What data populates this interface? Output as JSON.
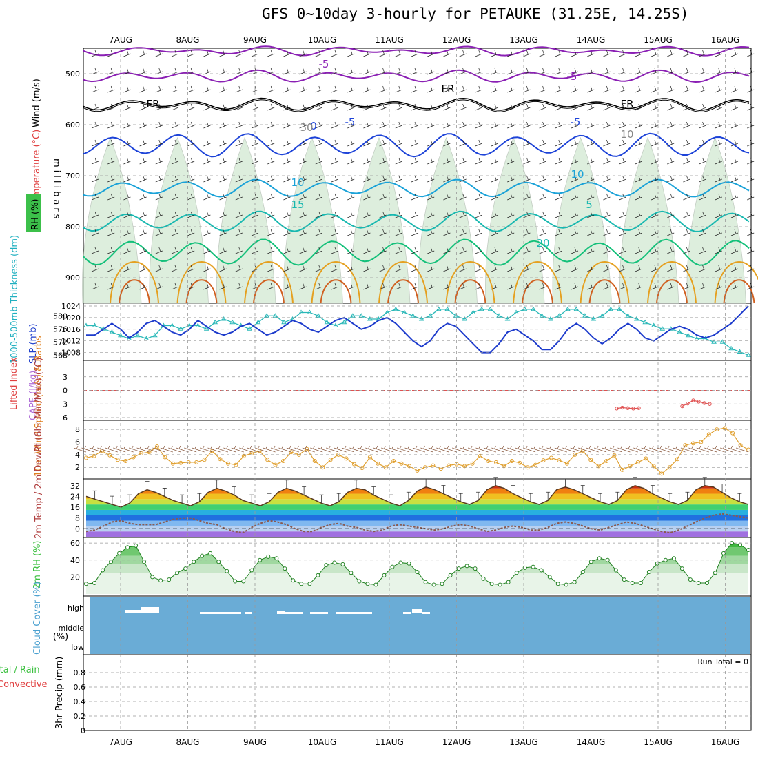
{
  "title": "GFS 0~10day 3-hourly for PETAUKE (31.25E, 14.25S)",
  "dates": [
    "7AUG",
    "8AUG",
    "9AUG",
    "10AUG",
    "11AUG",
    "12AUG",
    "13AUG",
    "14AUG",
    "15AUG",
    "16AUG"
  ],
  "colors": {
    "purple": "#8a1fb4",
    "blue": "#1d43d8",
    "cyan": "#1aa2d8",
    "teal": "#18b8b0",
    "green": "#14c07a",
    "orange": "#e5a020",
    "rh_fill": "#cfe8cf",
    "thickness": "#2ab8b8",
    "slp": "#1d3bcc",
    "wind": "#e0a030",
    "precip_bg": "#ffffff",
    "cloud": "#6aacd6",
    "lifted": "#e05050"
  },
  "chart_data": [
    {
      "type": "heatmap",
      "name": "upper-air",
      "ylabel": "millibars",
      "side_labels": {
        "wind": "Wind (m/s)",
        "temp": "Temperature (°C)",
        "rh": "RH (%)",
        "rh_levels": "70 90"
      },
      "yticks": [
        500,
        600,
        700,
        800,
        900
      ],
      "ylim": [
        450,
        950
      ],
      "isotherm_labels": [
        "-5",
        "-5",
        "-5",
        "-5",
        "FR",
        "FR",
        "FR",
        "0",
        "10",
        "10",
        "15",
        "5",
        "20",
        "30",
        "10"
      ]
    },
    {
      "type": "line",
      "name": "thickness-slp",
      "ylabel_left": "1000-500mb Thickness (dm)",
      "ylabel_right": "SLP (mb)",
      "yticks_left": [
        568,
        572,
        576,
        580
      ],
      "yticks_right": [
        1008,
        1012,
        1016,
        1020,
        1024
      ],
      "ylim_left": [
        567,
        583
      ],
      "ylim_right": [
        1006,
        1024
      ],
      "series": [
        {
          "name": "1000-500mb Thickness",
          "axis": "left",
          "values": [
            577,
            577,
            576,
            575,
            574,
            573,
            574,
            573,
            574,
            577,
            577,
            576,
            577,
            577,
            576,
            578,
            579,
            578,
            577,
            576,
            578,
            580,
            580,
            578,
            579,
            581,
            581,
            580,
            578,
            577,
            578,
            580,
            580,
            579,
            579,
            581,
            582,
            581,
            580,
            579,
            580,
            582,
            582,
            580,
            579,
            581,
            582,
            582,
            580,
            579,
            581,
            582,
            582,
            580,
            579,
            580,
            582,
            582,
            580,
            579,
            580,
            582,
            582,
            580,
            579,
            578,
            577,
            576,
            576,
            575,
            574,
            573,
            573,
            572,
            572,
            570,
            569,
            568
          ]
        },
        {
          "name": "SLP",
          "axis": "right",
          "values": [
            1014,
            1014,
            1016,
            1018,
            1016,
            1013,
            1015,
            1018,
            1019,
            1017,
            1015,
            1014,
            1016,
            1019,
            1017,
            1015,
            1014,
            1015,
            1017,
            1018,
            1016,
            1014,
            1015,
            1017,
            1019,
            1018,
            1016,
            1015,
            1017,
            1019,
            1020,
            1018,
            1016,
            1017,
            1019,
            1020,
            1018,
            1015,
            1012,
            1010,
            1012,
            1016,
            1018,
            1017,
            1014,
            1011,
            1008,
            1008,
            1011,
            1015,
            1016,
            1014,
            1012,
            1009,
            1009,
            1012,
            1016,
            1018,
            1016,
            1013,
            1011,
            1013,
            1016,
            1018,
            1016,
            1013,
            1012,
            1014,
            1016,
            1017,
            1016,
            1014,
            1013,
            1014,
            1016,
            1018,
            1021,
            1024
          ]
        }
      ]
    },
    {
      "type": "line",
      "name": "cape-lifted",
      "ylabel_left": "Lifted Index",
      "ylabel_right": "CAPE (J/kg)",
      "yticks": [
        -3,
        0,
        3,
        6
      ],
      "ylim": [
        -6,
        6
      ],
      "series": [
        {
          "name": "Lifted Index",
          "values": [
            4.0,
            3.8,
            3.9,
            4.0,
            3.9
          ]
        },
        {
          "name": "Lifted Index 2",
          "values": [
            3.5,
            2.9,
            2.2,
            2.5,
            2.8,
            3.0
          ]
        }
      ]
    },
    {
      "type": "line",
      "name": "wind-10m",
      "ylabel": "10m Wind Speed (m/s) & Barbs",
      "yticks": [
        2,
        4,
        6,
        8
      ],
      "ylim": [
        0.5,
        9
      ],
      "series": [
        {
          "name": "10m Wind Speed",
          "values": [
            3.5,
            3.8,
            4.6,
            3.9,
            3.2,
            3.0,
            3.6,
            4.2,
            4.4,
            5.3,
            3.6,
            2.6,
            2.7,
            2.8,
            2.8,
            3.2,
            4.6,
            3.3,
            2.6,
            2.4,
            3.8,
            4.2,
            4.6,
            3.2,
            2.4,
            3.0,
            4.4,
            4.0,
            4.9,
            3.0,
            2.0,
            3.2,
            4.0,
            3.4,
            2.5,
            1.9,
            3.6,
            2.6,
            2.0,
            3.0,
            2.6,
            2.2,
            1.5,
            2.0,
            2.3,
            1.8,
            2.3,
            2.5,
            2.2,
            2.6,
            3.8,
            3.0,
            2.8,
            2.2,
            3.0,
            2.7,
            2.0,
            2.4,
            3.1,
            3.5,
            3.1,
            2.6,
            4.0,
            4.6,
            3.2,
            2.2,
            3.0,
            3.9,
            1.6,
            2.2,
            2.8,
            3.4,
            2.2,
            1.0,
            2.0,
            3.3,
            5.5,
            5.8,
            6.0,
            7.2,
            8.0,
            8.2,
            7.4,
            5.5,
            4.8
          ]
        }
      ]
    },
    {
      "type": "area",
      "name": "temp-2m",
      "ylabel": "2m Temp / 2m DewPt (6hr Min/Max) (°C)",
      "yticks": [
        0,
        8,
        16,
        24,
        32
      ],
      "ylim": [
        -6,
        36
      ],
      "series": [
        {
          "name": "2m Temp",
          "values": [
            24,
            22,
            20,
            18,
            16,
            19,
            26,
            29,
            27,
            24,
            21,
            19,
            17,
            20,
            27,
            30,
            28,
            25,
            21,
            19,
            17,
            20,
            27,
            30,
            28,
            25,
            22,
            19,
            17,
            20,
            27,
            30,
            29,
            25,
            22,
            19,
            17,
            21,
            28,
            31,
            29,
            26,
            23,
            20,
            18,
            21,
            29,
            32,
            30,
            26,
            23,
            20,
            18,
            21,
            29,
            31,
            29,
            26,
            23,
            20,
            18,
            21,
            29,
            32,
            30,
            26,
            23,
            20,
            18,
            21,
            29,
            32,
            31,
            27,
            23,
            20,
            18
          ]
        },
        {
          "name": "2m DewPt",
          "values": [
            -2,
            -1,
            2,
            5,
            6,
            4,
            3,
            3,
            3,
            5,
            7,
            8,
            8,
            6,
            4,
            3,
            0,
            -2,
            -3,
            1,
            4,
            6,
            5,
            3,
            0,
            -2,
            -2,
            1,
            3,
            4,
            2,
            1,
            -1,
            -2,
            -1,
            2,
            3,
            2,
            1,
            0,
            -1,
            0,
            2,
            3,
            2,
            0,
            -2,
            -1,
            1,
            2,
            1,
            -1,
            -1,
            1,
            4,
            5,
            4,
            2,
            0,
            -1,
            1,
            3,
            5,
            4,
            2,
            0,
            -2,
            -3,
            -1,
            2,
            5,
            8,
            10,
            11,
            10,
            9,
            8
          ]
        }
      ]
    },
    {
      "type": "area",
      "name": "rh-2m",
      "ylabel": "2m RH (%)",
      "yticks": [
        20,
        40,
        60
      ],
      "ylim": [
        0,
        65
      ],
      "series": [
        {
          "name": "2m RH",
          "values": [
            12,
            13,
            28,
            38,
            48,
            55,
            57,
            38,
            20,
            16,
            17,
            25,
            30,
            38,
            45,
            48,
            38,
            27,
            15,
            15,
            28,
            40,
            44,
            42,
            30,
            16,
            12,
            12,
            22,
            34,
            37,
            35,
            25,
            15,
            12,
            11,
            22,
            32,
            37,
            36,
            26,
            14,
            11,
            12,
            22,
            30,
            33,
            30,
            18,
            12,
            11,
            14,
            25,
            31,
            32,
            28,
            20,
            12,
            11,
            14,
            26,
            38,
            42,
            40,
            28,
            17,
            13,
            13,
            26,
            36,
            40,
            42,
            30,
            17,
            13,
            13,
            25,
            48,
            60,
            58,
            52
          ]
        }
      ]
    },
    {
      "type": "heatmap",
      "name": "cloud-cover",
      "ylabel": "Cloud Cover (%)",
      "ytick_labels": [
        "high",
        "middle",
        "low"
      ]
    },
    {
      "type": "bar",
      "name": "precip",
      "ylabel": "3hr Precip (mm)",
      "legend_a": "Total / Rain",
      "legend_b": "Convective",
      "annotation": "Run Total = 0",
      "yticks": [
        0,
        0.2,
        0.4,
        0.6,
        0.8
      ],
      "ylim": [
        0,
        1
      ],
      "values": []
    }
  ]
}
